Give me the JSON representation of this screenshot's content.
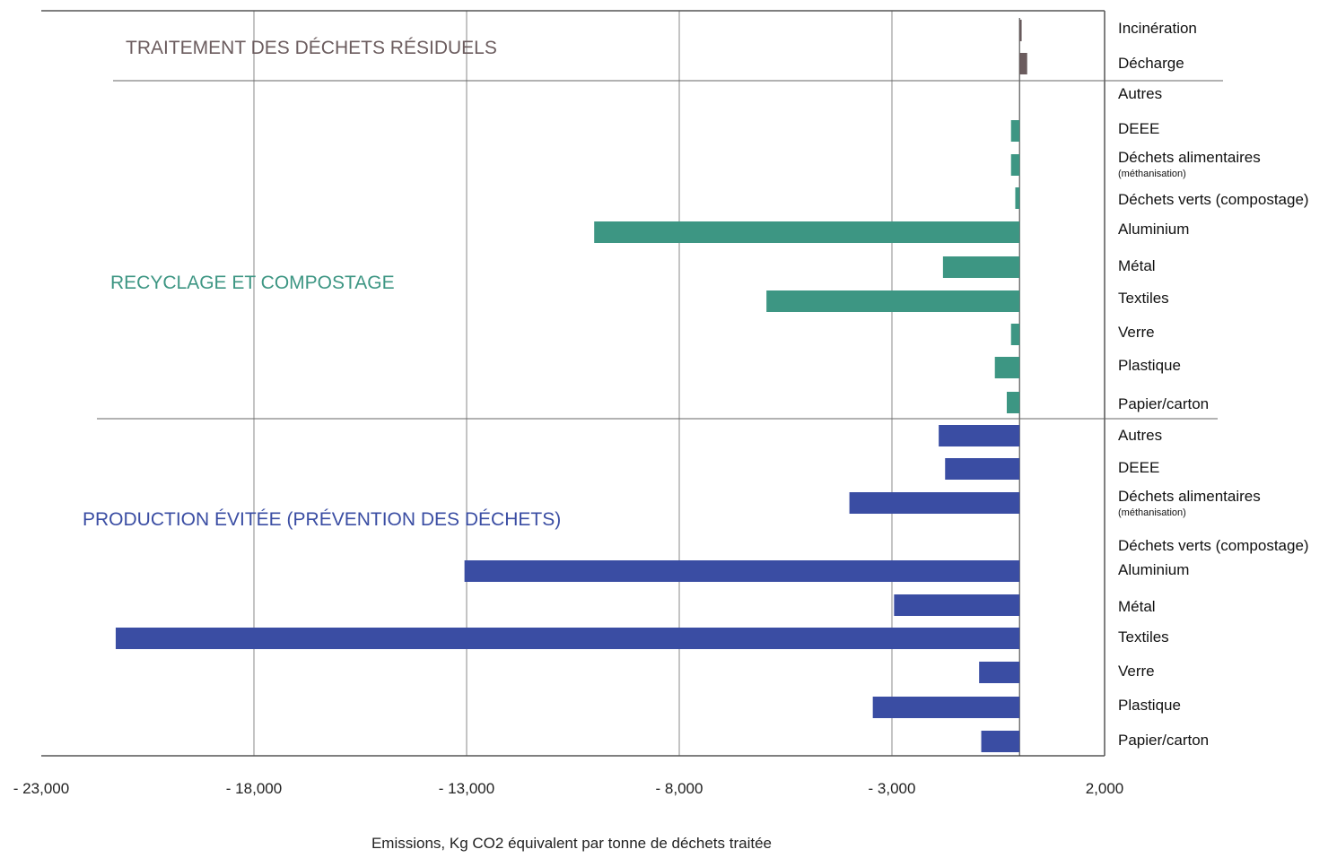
{
  "chart_data": {
    "type": "bar",
    "orientation": "horizontal",
    "xlabel": "Emissions, Kg CO2 équivalent par tonne de déchets traitée",
    "xlim": [
      -23000,
      2000
    ],
    "xticks": [
      -23000,
      -18000,
      -13000,
      -8000,
      -3000,
      2000
    ],
    "xtick_labels": [
      "- 23,000",
      "- 18,000",
      "- 13,000",
      "- 8,000",
      "- 3,000",
      "2,000"
    ],
    "grid": "vertical",
    "groups": [
      {
        "name": "TRAITEMENT DES DÉCHETS RÉSIDUELS",
        "color": "#6b5c5e",
        "items": [
          {
            "label": "Incinération",
            "sub": "",
            "value": 50
          },
          {
            "label": "Décharge",
            "sub": "",
            "value": 180
          }
        ]
      },
      {
        "name": "RECYCLAGE ET COMPOSTAGE",
        "color": "#3d9683",
        "items": [
          {
            "label": "Autres",
            "sub": "",
            "value": 0
          },
          {
            "label": "DEEE",
            "sub": "",
            "value": -200
          },
          {
            "label": "Déchets alimentaires",
            "sub": "(méthanisation)",
            "value": -200
          },
          {
            "label": "Déchets verts (compostage)",
            "sub": "",
            "value": -100
          },
          {
            "label": "Aluminium",
            "sub": "",
            "value": -10000
          },
          {
            "label": "Métal",
            "sub": "",
            "value": -1800
          },
          {
            "label": "Textiles",
            "sub": "",
            "value": -5950
          },
          {
            "label": "Verre",
            "sub": "",
            "value": -200
          },
          {
            "label": "Plastique",
            "sub": "",
            "value": -580
          },
          {
            "label": "Papier/carton",
            "sub": "",
            "value": -300
          }
        ]
      },
      {
        "name": "PRODUCTION ÉVITÉE (PRÉVENTION DES DÉCHETS)",
        "color": "#3a4da3",
        "items": [
          {
            "label": "Autres",
            "sub": "",
            "value": -1900
          },
          {
            "label": "DEEE",
            "sub": "",
            "value": -1750
          },
          {
            "label": "Déchets alimentaires",
            "sub": "(méthanisation)",
            "value": -4000
          },
          {
            "label": "Déchets verts (compostage)",
            "sub": "",
            "value": 0
          },
          {
            "label": "Aluminium",
            "sub": "",
            "value": -13050
          },
          {
            "label": "Métal",
            "sub": "",
            "value": -2950
          },
          {
            "label": "Textiles",
            "sub": "",
            "value": -21250
          },
          {
            "label": "Verre",
            "sub": "",
            "value": -950
          },
          {
            "label": "Plastique",
            "sub": "",
            "value": -3450
          },
          {
            "label": "Papier/carton",
            "sub": "",
            "value": -900
          }
        ]
      }
    ]
  }
}
